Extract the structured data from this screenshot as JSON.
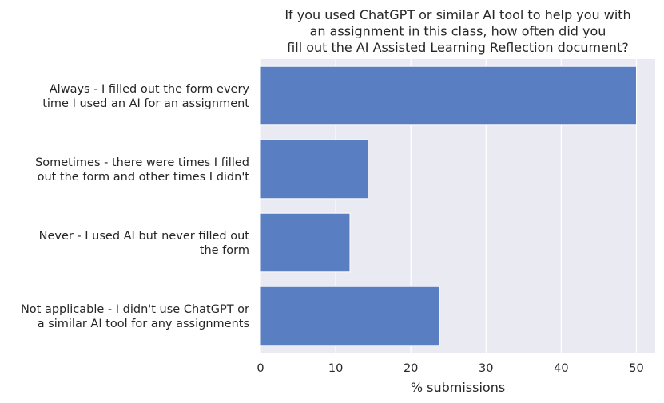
{
  "chart_data": {
    "type": "bar",
    "orientation": "horizontal",
    "title_lines": [
      "If you used ChatGPT or similar AI tool to help you with",
      "an assignment in this class, how often did you",
      "fill out the AI Assisted Learning Reflection document?"
    ],
    "categories": [
      [
        "Always - I filled out the form every",
        "time I used an AI for an assignment"
      ],
      [
        "Sometimes - there were times I filled",
        "out the form and other times I didn't"
      ],
      [
        "Never - I used AI but never filled out",
        "the form"
      ],
      [
        "Not applicable - I didn't use ChatGPT or",
        "a similar AI tool for any assignments"
      ]
    ],
    "values": [
      50.0,
      14.3,
      11.9,
      23.8
    ],
    "xlabel": "% submissions",
    "ylabel": "",
    "xlim": [
      0,
      52.5
    ],
    "xticks": [
      0,
      10,
      20,
      30,
      40,
      50
    ],
    "grid": true,
    "colors": {
      "bar": "#5a7ec2",
      "plot_background": "#eaeaf2",
      "grid": "#ffffff"
    }
  }
}
